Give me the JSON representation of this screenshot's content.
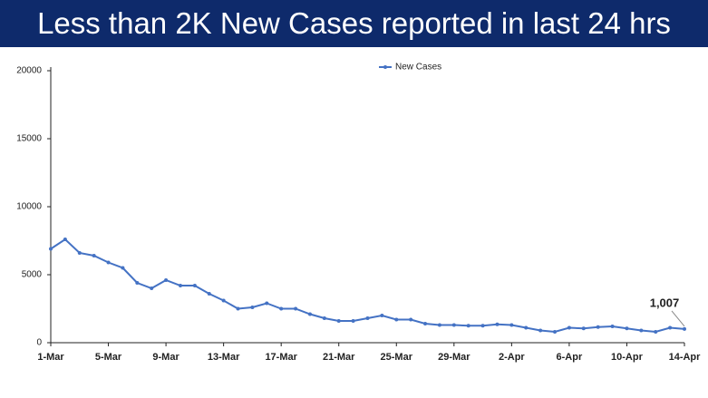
{
  "chart_data": {
    "type": "line",
    "title": "Less than 2K New Cases reported in last 24 hrs",
    "categories": [
      "1-Mar",
      null,
      null,
      null,
      "5-Mar",
      null,
      null,
      null,
      "9-Mar",
      null,
      null,
      null,
      "13-Mar",
      null,
      null,
      null,
      "17-Mar",
      null,
      null,
      null,
      "21-Mar",
      null,
      null,
      null,
      "25-Mar",
      null,
      null,
      null,
      "29-Mar",
      null,
      null,
      null,
      "2-Apr",
      null,
      null,
      null,
      "6-Apr",
      null,
      null,
      null,
      "10-Apr",
      null,
      null,
      null,
      "14-Apr"
    ],
    "series": [
      {
        "name": "New Cases",
        "color": "#4472c4",
        "values": [
          6900,
          7600,
          6600,
          6400,
          5900,
          5500,
          4400,
          4000,
          4600,
          4200,
          4200,
          3600,
          3100,
          2500,
          2600,
          2900,
          2500,
          2500,
          2100,
          1800,
          1600,
          1600,
          1800,
          2000,
          1700,
          1700,
          1400,
          1300,
          1300,
          1250,
          1250,
          1350,
          1300,
          1100,
          900,
          800,
          1100,
          1050,
          1150,
          1200,
          1050,
          900,
          800,
          1100,
          1007
        ],
        "value_labels": [
          null,
          null,
          null,
          null,
          null,
          null,
          null,
          null,
          null,
          null,
          null,
          null,
          null,
          null,
          null,
          null,
          null,
          null,
          null,
          null,
          null,
          null,
          null,
          null,
          null,
          null,
          null,
          null,
          null,
          null,
          null,
          null,
          null,
          null,
          null,
          null,
          null,
          null,
          null,
          null,
          null,
          null,
          null,
          null,
          "1,007"
        ]
      }
    ],
    "ylim": [
      0,
      20000
    ],
    "yticks": [
      0,
      5000,
      10000,
      15000,
      20000
    ],
    "grid": false,
    "legend": "top"
  }
}
